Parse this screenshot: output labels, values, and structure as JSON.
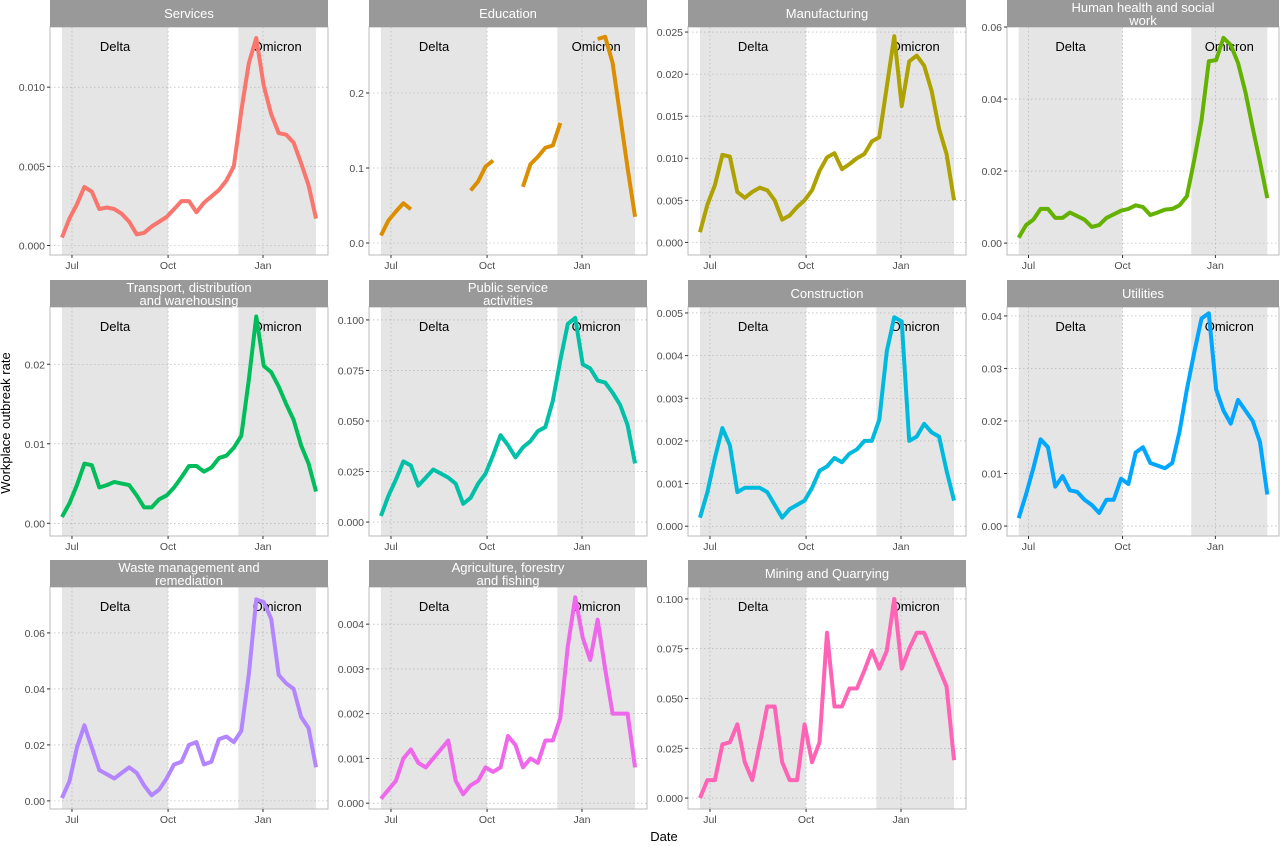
{
  "y_label": "Workplace outbreak rate",
  "x_label": "Date",
  "shared": {
    "x": [
      0,
      1,
      2,
      3,
      4,
      5,
      6,
      7,
      8,
      9,
      10,
      11,
      12,
      13,
      14,
      15,
      16,
      17,
      18,
      19,
      20,
      21,
      22,
      23,
      24,
      25,
      26,
      27,
      28,
      29,
      30,
      31,
      32,
      33,
      34
    ],
    "xlim": [
      -1.6,
      35.6
    ],
    "xticks": [
      {
        "value": 1.34,
        "label": "Jul"
      },
      {
        "value": 14.2,
        "label": "Oct"
      },
      {
        "value": 26.9,
        "label": "Jan"
      }
    ],
    "shading": [
      {
        "label": "Delta",
        "start": 0,
        "end": 14.2
      },
      {
        "label": "Omicron",
        "start": 23.6,
        "end": 34
      }
    ],
    "grid": true
  },
  "chart_data": [
    {
      "type": "line",
      "title": "Services",
      "color": "#F8766D",
      "ylim": [
        -0.0006,
        0.0138
      ],
      "yticks": [
        {
          "value": 0,
          "label": "0.000"
        },
        {
          "value": 0.005,
          "label": "0.005"
        },
        {
          "value": 0.01,
          "label": "0.010"
        }
      ],
      "values": [
        0.0005,
        0.0017,
        0.0026,
        0.0037,
        0.0034,
        0.0023,
        0.0024,
        0.0023,
        0.002,
        0.0015,
        0.0007,
        0.0008,
        0.0012,
        0.0015,
        0.0018,
        0.0023,
        0.0028,
        0.0028,
        0.0021,
        0.0027,
        0.0031,
        0.0035,
        0.0041,
        0.005,
        0.0085,
        0.0115,
        0.0131,
        0.0101,
        0.0083,
        0.0071,
        0.007,
        0.0065,
        0.0052,
        0.0038,
        0.0017
      ]
    },
    {
      "type": "line",
      "title": "Education",
      "color": "#DB8E00",
      "ylim": [
        -0.016,
        0.288
      ],
      "yticks": [
        {
          "value": 0,
          "label": "0.0"
        },
        {
          "value": 0.1,
          "label": "0.1"
        },
        {
          "value": 0.2,
          "label": "0.2"
        }
      ],
      "values": [
        0.01,
        0.03,
        0.042,
        0.053,
        0.045,
        null,
        null,
        null,
        null,
        null,
        null,
        null,
        0.07,
        0.082,
        0.102,
        0.11,
        null,
        null,
        null,
        0.075,
        0.105,
        0.115,
        0.127,
        0.13,
        0.16,
        null,
        null,
        null,
        null,
        0.272,
        0.275,
        0.24,
        0.17,
        0.1,
        0.035
      ]
    },
    {
      "type": "line",
      "title": "Manufacturing",
      "color": "#AEA200",
      "ylim": [
        -0.0015,
        0.0256
      ],
      "yticks": [
        {
          "value": 0,
          "label": "0.000"
        },
        {
          "value": 0.005,
          "label": "0.005"
        },
        {
          "value": 0.01,
          "label": "0.010"
        },
        {
          "value": 0.015,
          "label": "0.015"
        },
        {
          "value": 0.02,
          "label": "0.020"
        },
        {
          "value": 0.025,
          "label": "0.025"
        }
      ],
      "values": [
        0.0012,
        0.0045,
        0.0068,
        0.0104,
        0.0102,
        0.006,
        0.0053,
        0.006,
        0.0065,
        0.0062,
        0.005,
        0.0027,
        0.0032,
        0.0042,
        0.005,
        0.0062,
        0.0085,
        0.0101,
        0.0106,
        0.0087,
        0.0093,
        0.01,
        0.0105,
        0.012,
        0.0125,
        0.0185,
        0.0245,
        0.0162,
        0.0215,
        0.0222,
        0.021,
        0.018,
        0.0135,
        0.0105,
        0.005
      ]
    },
    {
      "type": "line",
      "title": "Human health and social\nwork",
      "color": "#64B200",
      "ylim": [
        -0.0033,
        0.06
      ],
      "yticks": [
        {
          "value": 0,
          "label": "0.00"
        },
        {
          "value": 0.02,
          "label": "0.02"
        },
        {
          "value": 0.04,
          "label": "0.04"
        },
        {
          "value": 0.06,
          "label": "0.06"
        }
      ],
      "values": [
        0.0015,
        0.005,
        0.0065,
        0.0095,
        0.0095,
        0.007,
        0.007,
        0.0085,
        0.0075,
        0.0065,
        0.0045,
        0.005,
        0.007,
        0.008,
        0.009,
        0.0095,
        0.0105,
        0.01,
        0.0078,
        0.0085,
        0.0093,
        0.0095,
        0.0105,
        0.013,
        0.023,
        0.034,
        0.0505,
        0.0508,
        0.057,
        0.055,
        0.05,
        0.042,
        0.032,
        0.0225,
        0.0125
      ]
    },
    {
      "type": "line",
      "title": "Transport, distribution\nand warehousing",
      "color": "#00BD5C",
      "ylim": [
        -0.0016,
        0.0272
      ],
      "yticks": [
        {
          "value": 0,
          "label": "0.00"
        },
        {
          "value": 0.01,
          "label": "0.01"
        },
        {
          "value": 0.02,
          "label": "0.02"
        }
      ],
      "values": [
        0.0008,
        0.0025,
        0.0048,
        0.0075,
        0.0073,
        0.0045,
        0.0048,
        0.0052,
        0.005,
        0.0048,
        0.0035,
        0.002,
        0.002,
        0.003,
        0.0035,
        0.0045,
        0.0058,
        0.0072,
        0.0072,
        0.0065,
        0.007,
        0.0082,
        0.0085,
        0.0095,
        0.011,
        0.018,
        0.026,
        0.0198,
        0.019,
        0.0172,
        0.015,
        0.013,
        0.0098,
        0.0075,
        0.004
      ]
    },
    {
      "type": "line",
      "title": "Public service\nactivities",
      "color": "#00C1A7",
      "ylim": [
        -0.0069,
        0.1064
      ],
      "yticks": [
        {
          "value": 0,
          "label": "0.000"
        },
        {
          "value": 0.025,
          "label": "0.025"
        },
        {
          "value": 0.05,
          "label": "0.050"
        },
        {
          "value": 0.075,
          "label": "0.075"
        },
        {
          "value": 0.1,
          "label": "0.100"
        }
      ],
      "values": [
        0.003,
        0.013,
        0.021,
        0.03,
        0.028,
        0.018,
        0.022,
        0.026,
        0.024,
        0.022,
        0.019,
        0.009,
        0.012,
        0.019,
        0.024,
        0.033,
        0.043,
        0.038,
        0.032,
        0.037,
        0.04,
        0.045,
        0.047,
        0.06,
        0.08,
        0.098,
        0.101,
        0.078,
        0.076,
        0.07,
        0.069,
        0.064,
        0.058,
        0.048,
        0.029
      ]
    },
    {
      "type": "line",
      "title": "Construction",
      "color": "#00BADE",
      "ylim": [
        -0.00023,
        0.00514
      ],
      "yticks": [
        {
          "value": 0,
          "label": "0.000"
        },
        {
          "value": 0.001,
          "label": "0.001"
        },
        {
          "value": 0.002,
          "label": "0.002"
        },
        {
          "value": 0.003,
          "label": "0.003"
        },
        {
          "value": 0.004,
          "label": "0.004"
        },
        {
          "value": 0.005,
          "label": "0.005"
        }
      ],
      "values": [
        0.0002,
        0.0008,
        0.0016,
        0.0023,
        0.0019,
        0.0008,
        0.0009,
        0.0009,
        0.0009,
        0.0008,
        0.0005,
        0.0002,
        0.0004,
        0.0005,
        0.0006,
        0.0009,
        0.0013,
        0.0014,
        0.0016,
        0.0015,
        0.0017,
        0.0018,
        0.002,
        0.002,
        0.0025,
        0.0041,
        0.0049,
        0.0048,
        0.002,
        0.0021,
        0.0024,
        0.0022,
        0.0021,
        0.0013,
        0.0006
      ]
    },
    {
      "type": "line",
      "title": "Utilities",
      "color": "#00A6FF",
      "ylim": [
        -0.0019,
        0.0417
      ],
      "yticks": [
        {
          "value": 0,
          "label": "0.00"
        },
        {
          "value": 0.01,
          "label": "0.01"
        },
        {
          "value": 0.02,
          "label": "0.02"
        },
        {
          "value": 0.03,
          "label": "0.03"
        },
        {
          "value": 0.04,
          "label": "0.04"
        }
      ],
      "values": [
        0.0015,
        0.006,
        0.011,
        0.0165,
        0.015,
        0.0075,
        0.0095,
        0.0068,
        0.0065,
        0.005,
        0.004,
        0.0025,
        0.005,
        0.005,
        0.009,
        0.008,
        0.014,
        0.015,
        0.012,
        0.0115,
        0.011,
        0.012,
        0.018,
        0.026,
        0.033,
        0.0395,
        0.0405,
        0.026,
        0.022,
        0.0195,
        0.024,
        0.022,
        0.02,
        0.016,
        0.006
      ]
    },
    {
      "type": "line",
      "title": "Waste management and\nremediation",
      "color": "#B385FF",
      "ylim": [
        -0.0029,
        0.0764
      ],
      "yticks": [
        {
          "value": 0,
          "label": "0.00"
        },
        {
          "value": 0.02,
          "label": "0.02"
        },
        {
          "value": 0.04,
          "label": "0.04"
        },
        {
          "value": 0.06,
          "label": "0.06"
        }
      ],
      "values": [
        0.001,
        0.007,
        0.019,
        0.027,
        0.019,
        0.011,
        0.0095,
        0.008,
        0.01,
        0.012,
        0.01,
        0.0055,
        0.002,
        0.004,
        0.008,
        0.013,
        0.014,
        0.02,
        0.021,
        0.013,
        0.014,
        0.022,
        0.023,
        0.021,
        0.025,
        0.045,
        0.072,
        0.071,
        0.065,
        0.045,
        0.042,
        0.04,
        0.03,
        0.026,
        0.012
      ]
    },
    {
      "type": "line",
      "title": "Agriculture, forestry\nand fishing",
      "color": "#EF67EB",
      "ylim": [
        -0.00013,
        0.00483
      ],
      "yticks": [
        {
          "value": 0,
          "label": "0.000"
        },
        {
          "value": 0.001,
          "label": "0.001"
        },
        {
          "value": 0.002,
          "label": "0.002"
        },
        {
          "value": 0.003,
          "label": "0.003"
        },
        {
          "value": 0.004,
          "label": "0.004"
        }
      ],
      "values": [
        0.0001,
        0.0003,
        0.0005,
        0.001,
        0.0012,
        0.0009,
        0.0008,
        0.001,
        0.0012,
        0.0014,
        0.0005,
        0.0002,
        0.0004,
        0.0005,
        0.0008,
        0.0007,
        0.0008,
        0.0015,
        0.0013,
        0.0008,
        0.001,
        0.0009,
        0.0014,
        0.0014,
        0.0019,
        0.0035,
        0.0046,
        0.0037,
        0.0032,
        0.0041,
        0.003,
        0.002,
        0.002,
        0.002,
        0.0008
      ]
    },
    {
      "type": "line",
      "title": "Mining and Quarrying",
      "color": "#FF63B6",
      "ylim": [
        -0.0055,
        0.106
      ],
      "yticks": [
        {
          "value": 0,
          "label": "0.000"
        },
        {
          "value": 0.025,
          "label": "0.025"
        },
        {
          "value": 0.05,
          "label": "0.050"
        },
        {
          "value": 0.075,
          "label": "0.075"
        },
        {
          "value": 0.1,
          "label": "0.100"
        }
      ],
      "values": [
        0,
        0.009,
        0.009,
        0.027,
        0.028,
        0.037,
        0.018,
        0.009,
        0.027,
        0.046,
        0.046,
        0.018,
        0.009,
        0.009,
        0.037,
        0.018,
        0.028,
        0.083,
        0.046,
        0.046,
        0.055,
        0.055,
        0.064,
        0.074,
        0.065,
        0.074,
        0.1,
        0.065,
        0.075,
        0.083,
        0.083,
        0.074,
        0.065,
        0.056,
        0.019
      ]
    }
  ]
}
